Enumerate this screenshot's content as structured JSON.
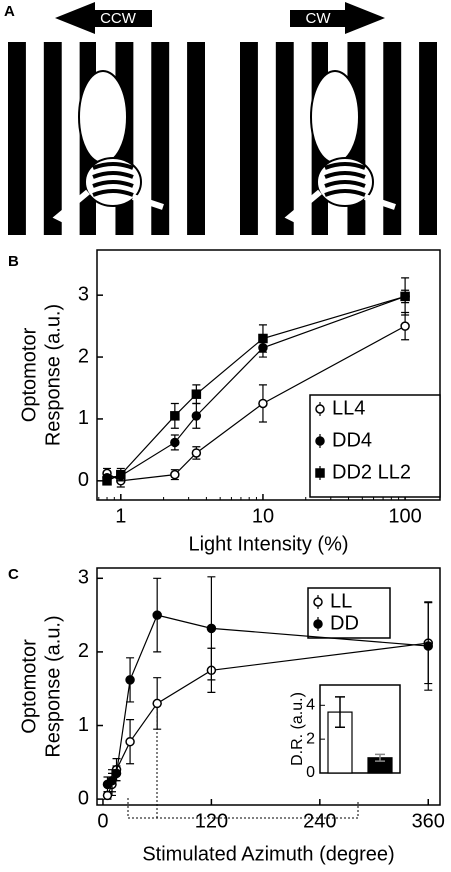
{
  "panel_a": {
    "label": "A",
    "arrows": [
      "CCW",
      "CW"
    ]
  },
  "chart_data": [
    {
      "type": "line",
      "panel": "B",
      "ylabel": [
        "Optomotor",
        "Response (a.u.)"
      ],
      "xlabel": "Light Intensity (%)",
      "xscale": "log",
      "x": [
        0.8,
        1,
        2.4,
        3.4,
        10,
        100
      ],
      "xlim": [
        0.68,
        176
      ],
      "xticks": [
        1,
        10,
        100
      ],
      "ylim": [
        -0.31,
        3.73
      ],
      "yticks": [
        0,
        1,
        2,
        3
      ],
      "series": [
        {
          "name": "LL4",
          "marker": "circle",
          "color": "#ffffff",
          "values": [
            0.12,
            0.0,
            0.1,
            0.45,
            1.25,
            2.5
          ],
          "errors": [
            0.08,
            0.1,
            0.08,
            0.1,
            0.3,
            0.22
          ]
        },
        {
          "name": "DD4",
          "marker": "circle",
          "color": "#000000",
          "values": [
            0.05,
            0.08,
            0.62,
            1.05,
            2.15,
            2.98
          ],
          "errors": [
            0.05,
            0.08,
            0.12,
            0.2,
            0.15,
            0.1
          ]
        },
        {
          "name": "DD2 LL2",
          "marker": "square",
          "color": "#000000",
          "values": [
            0.0,
            0.1,
            1.05,
            1.4,
            2.3,
            2.98
          ],
          "errors": [
            0.05,
            0.1,
            0.2,
            0.15,
            0.22,
            0.3
          ]
        }
      ]
    },
    {
      "type": "line",
      "panel": "C",
      "ylabel": [
        "Optomotor",
        "Response (a.u.)"
      ],
      "xlabel": "Stimulated Azimuth (degree)",
      "x": [
        5,
        10,
        15,
        30,
        60,
        120,
        360
      ],
      "xlim": [
        -6.6,
        373
      ],
      "xticks": [
        0,
        120,
        240,
        360
      ],
      "ylim": [
        -0.08,
        3.14
      ],
      "yticks": [
        0,
        1,
        2,
        3
      ],
      "series": [
        {
          "name": "LL",
          "marker": "circle",
          "color": "#ffffff",
          "values": [
            0.05,
            0.2,
            0.4,
            0.78,
            1.3,
            1.75,
            2.12
          ],
          "errors": [
            0.05,
            0.15,
            0.15,
            0.3,
            0.35,
            0.3,
            0.55
          ]
        },
        {
          "name": "DD",
          "marker": "circle",
          "color": "#000000",
          "values": [
            0.2,
            0.25,
            0.35,
            1.62,
            2.5,
            2.32,
            2.08
          ],
          "errors": [
            0.1,
            0.15,
            0.1,
            0.3,
            0.5,
            0.7,
            0.6
          ]
        }
      ]
    },
    {
      "type": "bar",
      "inset": true,
      "ylabel": "D.R. (a.u.)",
      "ylim": [
        0,
        5.2
      ],
      "yticks": [
        0,
        2,
        4
      ],
      "values": [
        3.6,
        0.9
      ],
      "errors": [
        0.9,
        0.2
      ],
      "colors": [
        "#ffffff",
        "#000000"
      ]
    }
  ]
}
